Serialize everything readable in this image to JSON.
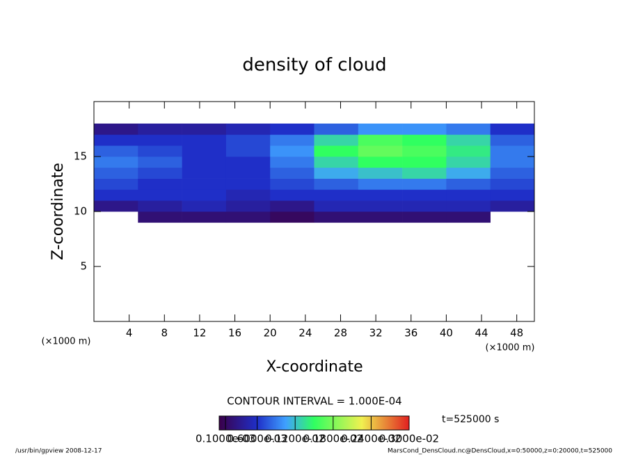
{
  "chart_data": {
    "type": "heatmap",
    "title": "density of cloud",
    "x_label": "X-coordinate",
    "y_label": "Z-coordinate",
    "x_unit": "(×1000 m)",
    "y_unit": "(×1000 m)",
    "xlim": [
      0,
      50
    ],
    "xticks": [
      4,
      8,
      12,
      16,
      20,
      24,
      28,
      32,
      36,
      40,
      44,
      48
    ],
    "ylim": [
      0,
      20
    ],
    "yticks": [
      5,
      10,
      15
    ],
    "x_edges": [
      0,
      5,
      10,
      15,
      20,
      25,
      30,
      35,
      40,
      45,
      50
    ],
    "z_edges": [
      9,
      10,
      11,
      12,
      13,
      14,
      15,
      16,
      17,
      18
    ],
    "values": [
      [
        null,
        0.0002,
        0.0002,
        0.0002,
        0.0001,
        0.0002,
        0.0002,
        0.0002,
        0.0002,
        null
      ],
      [
        0.0003,
        0.0004,
        0.0005,
        0.0004,
        0.0003,
        0.0005,
        0.0005,
        0.0005,
        0.0005,
        0.0004
      ],
      [
        0.0006,
        0.0006,
        0.0006,
        0.0005,
        0.0006,
        0.0006,
        0.0006,
        0.0006,
        0.0006,
        0.0006
      ],
      [
        0.0007,
        0.0006,
        0.0006,
        0.0006,
        0.0007,
        0.0008,
        0.0009,
        0.0009,
        0.0008,
        0.0007
      ],
      [
        0.0008,
        0.0007,
        0.0006,
        0.0006,
        0.0008,
        0.0011,
        0.0012,
        0.0013,
        0.0011,
        0.0008
      ],
      [
        0.0009,
        0.0008,
        0.0006,
        0.0006,
        0.0009,
        0.0013,
        0.0015,
        0.0015,
        0.0013,
        0.0009
      ],
      [
        0.0008,
        0.0007,
        0.0006,
        0.0007,
        0.001,
        0.0015,
        0.0017,
        0.0016,
        0.0014,
        0.0009
      ],
      [
        0.0006,
        0.0006,
        0.0006,
        0.0007,
        0.0009,
        0.0013,
        0.0016,
        0.0015,
        0.0013,
        0.0008
      ],
      [
        0.0003,
        0.0004,
        0.0004,
        0.0005,
        0.0006,
        0.0008,
        0.001,
        0.001,
        0.0009,
        0.0006
      ]
    ],
    "colorbar_lim": [
      0,
      0.003
    ],
    "colorbar_ticks": [
      {
        "value": 0.0001,
        "label": "0.1000e-03"
      },
      {
        "value": 0.0006,
        "label": "0.6000e-03"
      },
      {
        "value": 0.0012,
        "label": "0.1200e-02"
      },
      {
        "value": 0.0018,
        "label": "0.1800e-02"
      },
      {
        "value": 0.0024,
        "label": "0.2400e-02"
      },
      {
        "value": 0.003,
        "label": "0.3000e-02"
      }
    ],
    "contour_interval": "CONTOUR INTERVAL = 1.000E-04",
    "time": "t=525000 s",
    "footer_left": "/usr/bin/gpview   2008-12-17",
    "footer_right": "MarsCond_DensCloud.nc@DensCloud,x=0:50000,z=0:20000,t=525000"
  }
}
